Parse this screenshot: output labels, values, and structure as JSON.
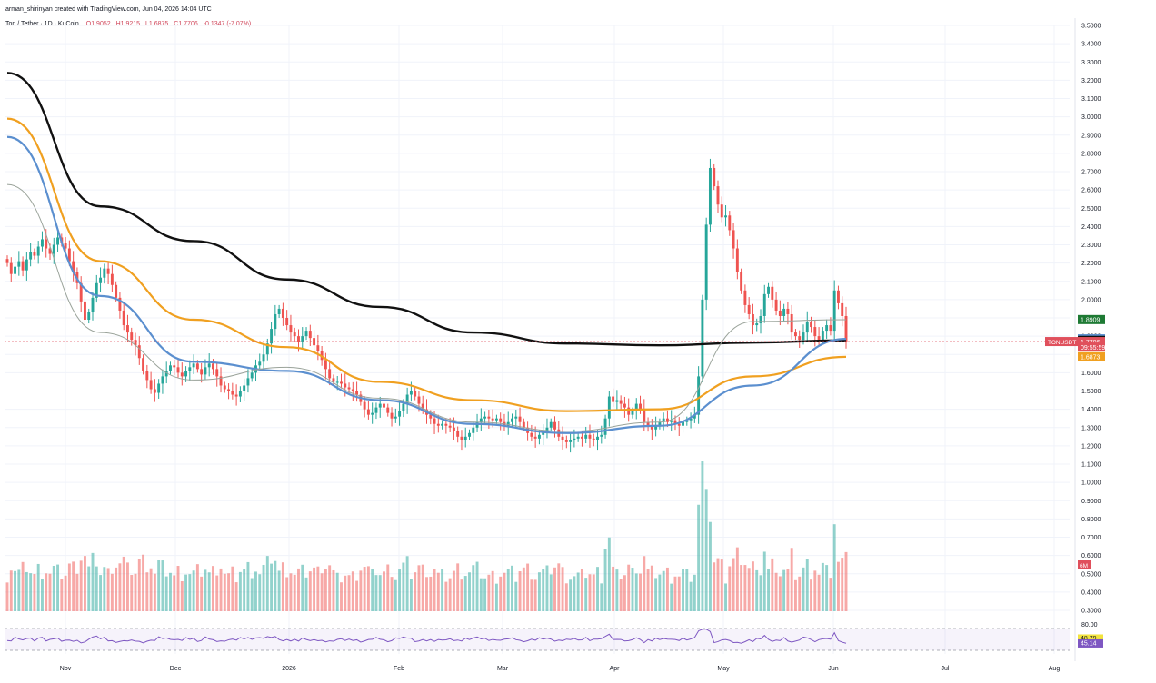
{
  "header": {
    "credit": "arman_shirinyan created with TradingView.com, Jun 04, 2026 14:04 UTC",
    "symbol": "Ton / Tether · 1D · KuCoin",
    "ohlc": [
      "O1.9052",
      "H1.9215",
      "L1.6875",
      "C1.7706",
      "-0.1347 (-7.07%)"
    ]
  },
  "price_tags": [
    {
      "text": "1.8909",
      "value": 1.8909,
      "color": "#1e7a34"
    },
    {
      "text": "1.7854",
      "value": 1.7854,
      "color": "#5b8fcf"
    },
    {
      "text": "1.7770",
      "value": 1.777,
      "color": "#111111"
    },
    {
      "text": "1.7706",
      "value": 1.7706,
      "color": "#e0505c"
    },
    {
      "text": "09:55:59",
      "value": 1.7406,
      "color": "#e0505c"
    },
    {
      "text": "1.6873",
      "value": 1.6873,
      "color": "#f0a020"
    }
  ],
  "symbol_tag": "TONUSDT",
  "volume_tag": "6M",
  "rsi_labels": {
    "upper": "80.00",
    "ma": "48.79",
    "value": "45.14"
  },
  "chart_data": {
    "type": "candlestick",
    "title": "Ton / Tether · 1D · KuCoin",
    "x_axis_labels": [
      "Nov",
      "Dec",
      "2026",
      "Feb",
      "Mar",
      "Apr",
      "May",
      "Jun",
      "Jul",
      "Aug"
    ],
    "y_axis": {
      "ticks": [
        "3.5000",
        "3.4000",
        "3.3000",
        "3.2000",
        "3.1000",
        "3.0000",
        "2.9000",
        "2.8000",
        "2.7000",
        "2.6000",
        "2.5000",
        "2.4000",
        "2.3000",
        "2.2000",
        "2.1000",
        "2.0000",
        "1.9000",
        "1.8000",
        "1.7000",
        "1.6000",
        "1.5000",
        "1.4000",
        "1.3000",
        "1.2000",
        "1.1000",
        "1.0000",
        "0.9000",
        "0.8000",
        "0.7000",
        "0.6000",
        "0.5000",
        "0.4000",
        "0.3000"
      ],
      "ylim": [
        0.3,
        3.5
      ]
    },
    "series_close": [
      2.2,
      2.14,
      2.18,
      2.21,
      2.16,
      2.22,
      2.26,
      2.24,
      2.29,
      2.33,
      2.28,
      2.25,
      2.3,
      2.34,
      2.31,
      2.28,
      2.21,
      2.15,
      2.09,
      1.99,
      1.89,
      1.93,
      2.01,
      2.09,
      2.12,
      2.17,
      2.14,
      2.08,
      2.01,
      1.94,
      1.86,
      1.82,
      1.78,
      1.75,
      1.68,
      1.61,
      1.56,
      1.51,
      1.49,
      1.54,
      1.58,
      1.61,
      1.64,
      1.63,
      1.6,
      1.58,
      1.61,
      1.63,
      1.65,
      1.62,
      1.59,
      1.63,
      1.65,
      1.62,
      1.58,
      1.53,
      1.51,
      1.5,
      1.48,
      1.47,
      1.5,
      1.53,
      1.57,
      1.6,
      1.64,
      1.66,
      1.7,
      1.76,
      1.84,
      1.92,
      1.95,
      1.9,
      1.86,
      1.82,
      1.8,
      1.77,
      1.8,
      1.83,
      1.79,
      1.75,
      1.72,
      1.67,
      1.62,
      1.57,
      1.55,
      1.55,
      1.54,
      1.52,
      1.51,
      1.5,
      1.48,
      1.44,
      1.4,
      1.37,
      1.38,
      1.41,
      1.43,
      1.41,
      1.38,
      1.35,
      1.36,
      1.39,
      1.43,
      1.48,
      1.5,
      1.47,
      1.43,
      1.4,
      1.37,
      1.35,
      1.32,
      1.31,
      1.32,
      1.31,
      1.3,
      1.28,
      1.25,
      1.23,
      1.25,
      1.27,
      1.3,
      1.33,
      1.35,
      1.36,
      1.35,
      1.34,
      1.35,
      1.33,
      1.31,
      1.33,
      1.35,
      1.36,
      1.33,
      1.3,
      1.27,
      1.25,
      1.24,
      1.26,
      1.28,
      1.3,
      1.33,
      1.29,
      1.25,
      1.23,
      1.22,
      1.23,
      1.24,
      1.25,
      1.24,
      1.26,
      1.24,
      1.23,
      1.25,
      1.26,
      1.35,
      1.47,
      1.44,
      1.45,
      1.43,
      1.41,
      1.37,
      1.39,
      1.43,
      1.4,
      1.33,
      1.31,
      1.29,
      1.31,
      1.33,
      1.35,
      1.33,
      1.34,
      1.32,
      1.31,
      1.33,
      1.34,
      1.35,
      1.37,
      1.58,
      2.0,
      2.41,
      2.72,
      2.62,
      2.52,
      2.45,
      2.46,
      2.38,
      2.28,
      2.15,
      2.05,
      1.97,
      1.92,
      1.86,
      1.87,
      1.91,
      2.03,
      2.07,
      2.0,
      1.94,
      1.91,
      1.95,
      1.92,
      1.82,
      1.8,
      1.78,
      1.82,
      1.88,
      1.85,
      1.8,
      1.78,
      1.83,
      1.86,
      1.83,
      2.05,
      1.98,
      1.91,
      1.77
    ],
    "series": [
      {
        "name": "",
        "color": "#111111",
        "values": [
          3.24,
          2.51,
          2.32,
          2.11,
          1.96,
          1.82,
          1.76,
          1.75,
          1.765,
          1.777
        ]
      },
      {
        "name": "",
        "color": "#f0a020",
        "values": [
          2.99,
          2.21,
          1.89,
          1.74,
          1.55,
          1.45,
          1.39,
          1.4,
          1.58,
          1.687
        ]
      },
      {
        "name": "",
        "color": "#5b8fcf",
        "values": [
          2.89,
          2.02,
          1.66,
          1.61,
          1.45,
          1.32,
          1.27,
          1.31,
          1.53,
          1.785
        ]
      },
      {
        "name": "",
        "color": "#9aa39a",
        "values": [
          2.63,
          1.82,
          1.56,
          1.63,
          1.46,
          1.33,
          1.28,
          1.33,
          1.88,
          1.89
        ]
      }
    ],
    "volume_ylim": [
      0,
      100
    ],
    "rsi_ylim": [
      20,
      80
    ],
    "rsi_value": 45.14,
    "rsi_ma_value": 48.79
  }
}
